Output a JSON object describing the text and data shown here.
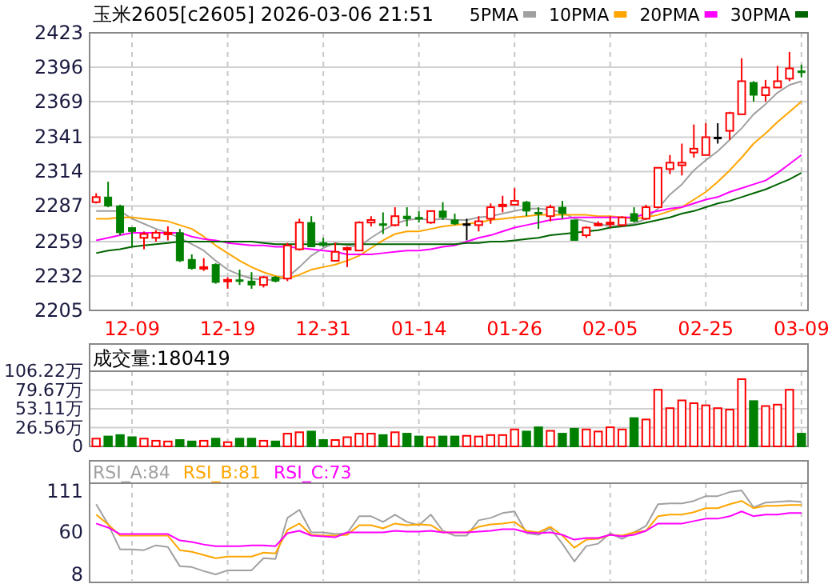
{
  "chart_data": [
    {
      "type": "candlestick",
      "title": "玉米2605[c2605] 2026-03-06 21:51",
      "categories": [
        null,
        null,
        null,
        "12-09",
        null,
        null,
        null,
        null,
        null,
        null,
        null,
        "12-19",
        null,
        null,
        null,
        null,
        null,
        null,
        null,
        "12-31",
        null,
        null,
        null,
        null,
        null,
        null,
        null,
        "01-14",
        null,
        null,
        null,
        null,
        null,
        null,
        null,
        "01-26",
        null,
        null,
        null,
        null,
        null,
        null,
        null,
        "02-05",
        null,
        null,
        null,
        null,
        null,
        null,
        null,
        "02-25",
        null,
        null,
        null,
        null,
        null,
        null,
        null,
        "03-09"
      ],
      "ohlc": [
        [
          2290,
          2297,
          2289,
          2294
        ],
        [
          2294,
          2306,
          2286,
          2287
        ],
        [
          2287,
          2288,
          2264,
          2266
        ],
        [
          2270,
          2270,
          2255,
          2267
        ],
        [
          2262,
          2267,
          2253,
          2265
        ],
        [
          2262,
          2268,
          2259,
          2266
        ],
        [
          2265,
          2271,
          2260,
          2266
        ],
        [
          2266,
          2269,
          2243,
          2244
        ],
        [
          2245,
          2249,
          2237,
          2238
        ],
        [
          2238,
          2246,
          2236,
          2239
        ],
        [
          2241,
          2242,
          2226,
          2227
        ],
        [
          2228,
          2231,
          2222,
          2229
        ],
        [
          2229,
          2237,
          2225,
          2228
        ],
        [
          2228,
          2235,
          2222,
          2225
        ],
        [
          2225,
          2232,
          2223,
          2231
        ],
        [
          2231,
          2232,
          2227,
          2228
        ],
        [
          2230,
          2258,
          2228,
          2256
        ],
        [
          2253,
          2277,
          2252,
          2274
        ],
        [
          2274,
          2279,
          2255,
          2255
        ],
        [
          2258,
          2262,
          2255,
          2256
        ],
        [
          2244,
          2258,
          2244,
          2251
        ],
        [
          2253,
          2255,
          2239,
          2254
        ],
        [
          2252,
          2275,
          2252,
          2274
        ],
        [
          2274,
          2279,
          2271,
          2276
        ],
        [
          2273,
          2282,
          2265,
          2272
        ],
        [
          2272,
          2286,
          2271,
          2279
        ],
        [
          2279,
          2286,
          2271,
          2277
        ],
        [
          2278,
          2283,
          2274,
          2277
        ],
        [
          2274,
          2283,
          2273,
          2283
        ],
        [
          2283,
          2290,
          2276,
          2278
        ],
        [
          2276,
          2281,
          2272,
          2273
        ],
        [
          2273,
          2277,
          2260,
          2273
        ],
        [
          2272,
          2279,
          2267,
          2275
        ],
        [
          2277,
          2289,
          2273,
          2286
        ],
        [
          2287,
          2295,
          2282,
          2288
        ],
        [
          2288,
          2301,
          2288,
          2291
        ],
        [
          2290,
          2291,
          2279,
          2283
        ],
        [
          2282,
          2286,
          2269,
          2281
        ],
        [
          2279,
          2288,
          2275,
          2286
        ],
        [
          2286,
          2291,
          2277,
          2281
        ],
        [
          2276,
          2276,
          2260,
          2260
        ],
        [
          2264,
          2271,
          2262,
          2270
        ],
        [
          2272,
          2275,
          2271,
          2273
        ],
        [
          2273,
          2279,
          2270,
          2274
        ],
        [
          2272,
          2279,
          2271,
          2278
        ],
        [
          2281,
          2286,
          2274,
          2275
        ],
        [
          2277,
          2288,
          2276,
          2286
        ],
        [
          2286,
          2317,
          2286,
          2317
        ],
        [
          2316,
          2327,
          2312,
          2321
        ],
        [
          2319,
          2336,
          2311,
          2321
        ],
        [
          2329,
          2351,
          2325,
          2332
        ],
        [
          2327,
          2352,
          2327,
          2341
        ],
        [
          2341,
          2352,
          2336,
          2341
        ],
        [
          2346,
          2361,
          2339,
          2360
        ],
        [
          2359,
          2403,
          2359,
          2385
        ],
        [
          2384,
          2385,
          2369,
          2374
        ],
        [
          2374,
          2386,
          2369,
          2380
        ],
        [
          2380,
          2397,
          2380,
          2385
        ],
        [
          2387,
          2408,
          2385,
          2395
        ],
        [
          2393,
          2398,
          2388,
          2393
        ]
      ],
      "colors": [
        "#ff0000",
        "#008000",
        "#008000",
        "#008000",
        "#ff0000",
        "#ff0000",
        "#ff0000",
        "#008000",
        "#008000",
        "#ff0000",
        "#008000",
        "#ff0000",
        "#008000",
        "#008000",
        "#ff0000",
        "#008000",
        "#ff0000",
        "#ff0000",
        "#008000",
        "#008000",
        "#ff0000",
        "#ff0000",
        "#ff0000",
        "#ff0000",
        "#008000",
        "#ff0000",
        "#008000",
        "#008000",
        "#ff0000",
        "#008000",
        "#008000",
        "#000000",
        "#ff0000",
        "#ff0000",
        "#ff0000",
        "#ff0000",
        "#008000",
        "#008000",
        "#ff0000",
        "#008000",
        "#008000",
        "#ff0000",
        "#ff0000",
        "#ff0000",
        "#ff0000",
        "#008000",
        "#ff0000",
        "#ff0000",
        "#ff0000",
        "#ff0000",
        "#ff0000",
        "#ff0000",
        "#000000",
        "#ff0000",
        "#ff0000",
        "#008000",
        "#ff0000",
        "#ff0000",
        "#ff0000",
        "#008000"
      ],
      "series": [
        {
          "name": "5PMA",
          "type": "line",
          "color": "#a0a0a0",
          "values": [
            2283,
            2283,
            2283,
            2277,
            2273,
            2269,
            2266,
            2262,
            2257,
            2252,
            2244,
            2237,
            2233,
            2230,
            2229,
            2229,
            2231,
            2239,
            2248,
            2254,
            2258,
            2256,
            2255,
            2262,
            2268,
            2273,
            2276,
            2277,
            2276,
            2277,
            2276,
            2276,
            2278,
            2279,
            2281,
            2283,
            2285,
            2285,
            2284,
            2282,
            2277,
            2275,
            2273,
            2271,
            2272,
            2273,
            2277,
            2285,
            2296,
            2304,
            2315,
            2323,
            2330,
            2339,
            2348,
            2359,
            2367,
            2376,
            2382,
            2385
          ]
        },
        {
          "name": "10PMA",
          "type": "line",
          "color": "#ffa500",
          "values": [
            2277,
            2277,
            2278,
            2278,
            2277,
            2276,
            2275,
            2272,
            2269,
            2263,
            2256,
            2250,
            2244,
            2239,
            2235,
            2232,
            2230,
            2233,
            2237,
            2239,
            2241,
            2244,
            2248,
            2254,
            2260,
            2265,
            2267,
            2267,
            2269,
            2271,
            2272,
            2273,
            2274,
            2276,
            2277,
            2278,
            2279,
            2280,
            2280,
            2280,
            2280,
            2280,
            2279,
            2279,
            2278,
            2277,
            2278,
            2280,
            2283,
            2286,
            2292,
            2298,
            2306,
            2315,
            2325,
            2336,
            2344,
            2353,
            2361,
            2369
          ]
        },
        {
          "name": "20PMA",
          "type": "line",
          "color": "#ff00ff",
          "values": [
            2260,
            2262,
            2264,
            2266,
            2266,
            2266,
            2266,
            2266,
            2263,
            2261,
            2260,
            2258,
            2257,
            2256,
            2256,
            2255,
            2255,
            2254,
            2253,
            2252,
            2251,
            2249,
            2249,
            2249,
            2250,
            2251,
            2252,
            2252,
            2253,
            2255,
            2256,
            2259,
            2262,
            2264,
            2267,
            2270,
            2272,
            2274,
            2276,
            2277,
            2278,
            2278,
            2278,
            2278,
            2278,
            2278,
            2281,
            2283,
            2285,
            2286,
            2289,
            2292,
            2294,
            2298,
            2301,
            2304,
            2307,
            2313,
            2320,
            2327
          ]
        },
        {
          "name": "30PMA",
          "type": "line",
          "color": "#006400",
          "values": [
            2250,
            2252,
            2253,
            2255,
            2256,
            2257,
            2258,
            2259,
            2259,
            2259,
            2259,
            2259,
            2259,
            2259,
            2258,
            2257,
            2257,
            2257,
            2257,
            2257,
            2257,
            2257,
            2257,
            2257,
            2257,
            2257,
            2257,
            2257,
            2257,
            2257,
            2257,
            2258,
            2258,
            2259,
            2259,
            2260,
            2261,
            2262,
            2264,
            2265,
            2266,
            2267,
            2268,
            2270,
            2271,
            2272,
            2274,
            2276,
            2278,
            2281,
            2283,
            2286,
            2289,
            2291,
            2294,
            2297,
            2300,
            2304,
            2308,
            2313
          ]
        }
      ],
      "ylim": [
        2205,
        2423
      ],
      "yticks": [
        2205,
        2232,
        2259,
        2287,
        2314,
        2341,
        2369,
        2396,
        2423
      ],
      "grid": true,
      "legend": "top right"
    },
    {
      "type": "bar",
      "title": "成交量:180419",
      "categories": [
        null,
        null,
        null,
        null,
        null,
        null,
        null,
        null,
        null,
        null,
        null,
        null,
        null,
        null,
        null,
        null,
        null,
        null,
        null,
        null,
        null,
        null,
        null,
        null,
        null,
        null,
        null,
        null,
        null,
        null,
        null,
        null,
        null,
        null,
        null,
        null,
        null,
        null,
        null,
        null,
        null,
        null,
        null,
        null,
        null,
        null,
        null,
        null,
        null,
        null,
        null,
        null,
        null,
        null,
        null,
        null,
        null,
        null,
        null,
        null
      ],
      "values": [
        11,
        14,
        16,
        13,
        11,
        8,
        7,
        9,
        7,
        8,
        11,
        6,
        11,
        11,
        8,
        7,
        18,
        20,
        21,
        9,
        9,
        13,
        18,
        18,
        16,
        20,
        18,
        14,
        13,
        14,
        14,
        15,
        14,
        16,
        16,
        24,
        21,
        27,
        22,
        18,
        25,
        24,
        21,
        27,
        24,
        40,
        38,
        80,
        54,
        65,
        61,
        58,
        54,
        52,
        95,
        64,
        57,
        59,
        80,
        18
      ],
      "colors": [
        "#ff0000",
        "#008000",
        "#008000",
        "#008000",
        "#ff0000",
        "#ff0000",
        "#ff0000",
        "#008000",
        "#008000",
        "#ff0000",
        "#008000",
        "#ff0000",
        "#008000",
        "#008000",
        "#ff0000",
        "#008000",
        "#ff0000",
        "#ff0000",
        "#008000",
        "#008000",
        "#ff0000",
        "#ff0000",
        "#ff0000",
        "#ff0000",
        "#008000",
        "#ff0000",
        "#008000",
        "#008000",
        "#ff0000",
        "#008000",
        "#008000",
        "#ff0000",
        "#ff0000",
        "#ff0000",
        "#ff0000",
        "#ff0000",
        "#008000",
        "#008000",
        "#ff0000",
        "#008000",
        "#008000",
        "#ff0000",
        "#ff0000",
        "#ff0000",
        "#ff0000",
        "#008000",
        "#ff0000",
        "#ff0000",
        "#ff0000",
        "#ff0000",
        "#ff0000",
        "#ff0000",
        "#ff0000",
        "#ff0000",
        "#ff0000",
        "#008000",
        "#ff0000",
        "#ff0000",
        "#ff0000",
        "#008000"
      ],
      "ylim": [
        0,
        106.22
      ],
      "yticks": [
        0,
        {
          "value": 26.56,
          "label": "26.56万"
        },
        {
          "value": 53.11,
          "label": "53.11万"
        },
        {
          "value": 79.67,
          "label": "79.67万"
        },
        {
          "value": 106.22,
          "label": "106.22万"
        }
      ],
      "grid": true,
      "tick_labels": "y"
    },
    {
      "type": "line",
      "categories": [
        null,
        null,
        null,
        null,
        null,
        null,
        null,
        null,
        null,
        null,
        null,
        null,
        null,
        null,
        null,
        null,
        null,
        null,
        null,
        null,
        null,
        null,
        null,
        null,
        null,
        null,
        null,
        null,
        null,
        null,
        null,
        null,
        null,
        null,
        null,
        null,
        null,
        null,
        null,
        null,
        null,
        null,
        null,
        null,
        null,
        null,
        null,
        null,
        null,
        null,
        null,
        null,
        null,
        null,
        null,
        null,
        null,
        null,
        null,
        null
      ],
      "series": [
        {
          "name": "RSI_A:84",
          "color": "#a0a0a0",
          "values": [
            95,
            70,
            39,
            39,
            38,
            44,
            42,
            18,
            17,
            12,
            8,
            13,
            13,
            13,
            28,
            27,
            78,
            88,
            60,
            60,
            58,
            59,
            80,
            80,
            73,
            82,
            73,
            69,
            82,
            62,
            56,
            56,
            75,
            78,
            84,
            86,
            59,
            57,
            65,
            46,
            24,
            43,
            46,
            59,
            52,
            60,
            68,
            95,
            96,
            96,
            99,
            105,
            105,
            110,
            112,
            91,
            97,
            98,
            99,
            98
          ]
        },
        {
          "name": "RSI_B:81",
          "color": "#ffa500",
          "values": [
            82,
            70,
            56,
            56,
            56,
            56,
            56,
            38,
            36,
            32,
            28,
            30,
            30,
            30,
            35,
            34,
            63,
            71,
            57,
            56,
            56,
            57,
            69,
            69,
            65,
            71,
            69,
            70,
            69,
            60,
            60,
            60,
            67,
            70,
            71,
            73,
            62,
            60,
            67,
            56,
            41,
            51,
            52,
            57,
            56,
            60,
            62,
            80,
            82,
            82,
            85,
            90,
            90,
            95,
            99,
            90,
            93,
            93,
            94,
            94
          ]
        },
        {
          "name": "RSI_C:73",
          "color": "#ff00ff",
          "values": [
            71,
            66,
            58,
            58,
            58,
            58,
            58,
            50,
            48,
            45,
            43,
            43,
            43,
            44,
            44,
            43,
            59,
            62,
            56,
            55,
            54,
            60,
            60,
            60,
            60,
            62,
            61,
            61,
            62,
            60,
            60,
            60,
            61,
            62,
            64,
            64,
            60,
            59,
            60,
            57,
            51,
            53,
            53,
            57,
            55,
            57,
            62,
            71,
            71,
            71,
            74,
            77,
            77,
            80,
            86,
            80,
            82,
            82,
            84,
            84
          ]
        }
      ],
      "ylim": [
        0,
        121
      ],
      "yticks": [
        8,
        60,
        111
      ],
      "grid": "x",
      "legend": "top left",
      "tick_labels": "y"
    }
  ]
}
